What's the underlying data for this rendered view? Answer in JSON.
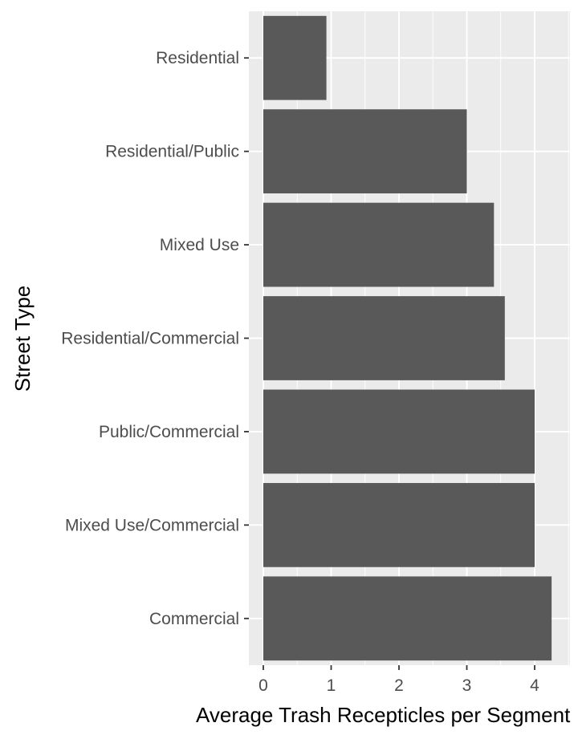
{
  "chart_data": {
    "type": "bar",
    "orientation": "horizontal",
    "categories": [
      "Residential",
      "Residential/Public",
      "Mixed Use",
      "Residential/Commercial",
      "Public/Commercial",
      "Mixed Use/Commercial",
      "Commercial"
    ],
    "values": [
      0.93,
      3.0,
      3.4,
      3.56,
      4.0,
      4.0,
      4.25
    ],
    "xlabel": "Average Trash Recepticles per Segment",
    "ylabel": "Street Type",
    "xticks": [
      0,
      1,
      2,
      3,
      4
    ],
    "xlim": [
      -0.22,
      4.5
    ],
    "grid": true,
    "colors": {
      "panel": "#ebebeb",
      "grid": "#ffffff",
      "bar": "#595959",
      "tick": "#333333"
    }
  }
}
